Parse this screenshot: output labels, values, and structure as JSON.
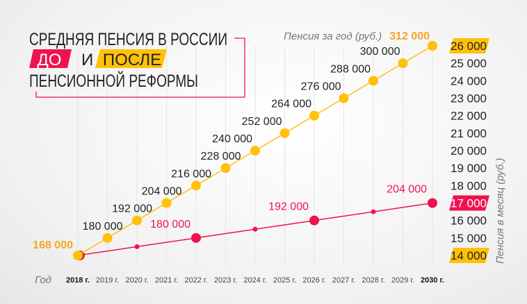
{
  "title": {
    "line1": "СРЕДНЯЯ ПЕНСИЯ В РОССИИ",
    "before": "ДО",
    "and": "И",
    "after": "ПОСЛЕ",
    "line3": "ПЕНСИОННОЙ РЕФОРМЫ"
  },
  "colors": {
    "after": "#ffc107",
    "before": "#f0124f",
    "afterLabel": "#f5a623"
  },
  "chart_data": {
    "type": "line",
    "x": [
      "2018 г.",
      "2019 г.",
      "2020 г.",
      "2021 г.",
      "2022 г.",
      "2023 г.",
      "2024 г.",
      "2025 г.",
      "2026 г.",
      "2027 г.",
      "2028 г.",
      "2029 г.",
      "2030 г."
    ],
    "xlabel": "Год",
    "ylabel_left": "Пенсия за год (руб.)",
    "ylabel_right": "Пенсия в месяц (руб.)",
    "right_ticks": [
      "14 000",
      "15 000",
      "16 000",
      "17 000",
      "18 000",
      "19 000",
      "20 000",
      "21 000",
      "22 000",
      "23 000",
      "24 000",
      "25 000",
      "26 000"
    ],
    "ylim_monthly": [
      14000,
      26000
    ],
    "grid": "vertical",
    "series": [
      {
        "key": "after",
        "color": "#ffc107",
        "monthly": [
          14000,
          15000,
          16000,
          17000,
          18000,
          19000,
          20000,
          21000,
          22000,
          23000,
          24000,
          25000,
          26000
        ],
        "labels": [
          "168 000",
          "180 000",
          "192 000",
          "204 000",
          "216 000",
          "228 000",
          "240 000",
          "252 000",
          "264 000",
          "276 000",
          "288 000",
          "300 000",
          "312 000"
        ]
      },
      {
        "key": "before",
        "color": "#f0124f",
        "monthly": [
          14000,
          14250,
          14500,
          14750,
          15000,
          15250,
          15500,
          15750,
          16000,
          16250,
          16500,
          16750,
          17000
        ],
        "major_points": [
          0,
          4,
          8,
          12
        ],
        "minor_points": [
          2,
          6,
          10
        ],
        "labels": {
          "4": "180 000",
          "8": "192 000",
          "12": "204 000"
        }
      }
    ]
  }
}
